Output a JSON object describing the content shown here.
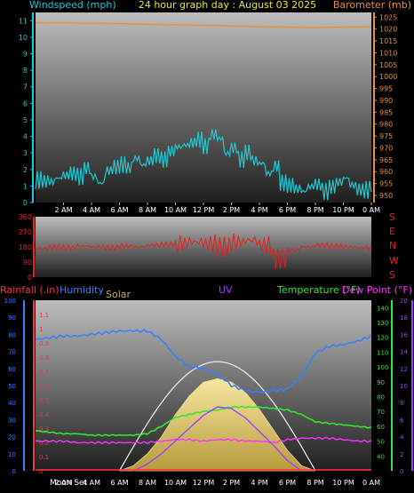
{
  "colors": {
    "wind": "#1ec8d4",
    "barometer": "#e8903a",
    "title": "#e8e830",
    "direction": "#ee1c1c",
    "rain": "#ff3030",
    "humidity": "#3a7fff",
    "solar": "#c8b050",
    "uv": "#a040ff",
    "temperature": "#30e830",
    "dewpoint": "#ff30ff"
  },
  "header": {
    "windspeed_label": "Windspeed (mph)",
    "title": "24 hour graph day : August 03 2025",
    "barometer_label": "Barometer (mb)"
  },
  "bottom_labels": {
    "rainfall": "Rainfall (.in)",
    "humidity": "Humidity",
    "solar": "Solar",
    "uv": "UV",
    "temperature": "Temperature (°F)",
    "dewpoint": "Dew Point (°F)",
    "moon_set": "Moon Set"
  },
  "compass": [
    "S",
    "E",
    "N",
    "W",
    "S"
  ],
  "time_ticks": [
    "2 AM",
    "4 AM",
    "6 AM",
    "8 AM",
    "10 AM",
    "12 PM",
    "2 PM",
    "4 PM",
    "6 PM",
    "8 PM",
    "10 PM",
    "0 AM"
  ],
  "chart_data": [
    {
      "type": "line",
      "title": "24 hour graph day : August 03 2025",
      "x_unit": "hours since midnight",
      "xlim": [
        0,
        24
      ],
      "series": [
        {
          "name": "Windspeed (mph)",
          "axis": "left",
          "ylim": [
            0,
            11.5
          ],
          "x": [
            0,
            0.5,
            1,
            1.5,
            2,
            2.5,
            3,
            3.5,
            4,
            4.5,
            5,
            5.5,
            6,
            6.5,
            7,
            7.5,
            8,
            8.5,
            9,
            9.5,
            10,
            10.5,
            11,
            11.5,
            12,
            12.5,
            13,
            13.5,
            14,
            14.5,
            15,
            15.5,
            16,
            16.5,
            17,
            17.5,
            18,
            18.5,
            19,
            19.5,
            20,
            20.5,
            21,
            21.5,
            22,
            22.5,
            23,
            23.5,
            24
          ],
          "y": [
            1.2,
            1,
            0.9,
            1.1,
            1.3,
            1.5,
            1.4,
            1.8,
            1.2,
            0.8,
            1.6,
            1.9,
            2.1,
            1.8,
            2.3,
            1.9,
            2.2,
            2.6,
            2.4,
            2.8,
            3,
            3.1,
            3.3,
            3.6,
            3.2,
            3.8,
            3.5,
            2.6,
            3,
            2.4,
            2.8,
            2.2,
            2,
            1.4,
            1.9,
            1,
            0.8,
            0.5,
            0.3,
            0.6,
            0.8,
            0.5,
            0.7,
            0.9,
            1.1,
            0.7,
            0.5,
            0.6,
            0.8
          ]
        },
        {
          "name": "Barometer (mb)",
          "axis": "right",
          "ylim": [
            947,
            1027
          ],
          "y_ticks": [
            950,
            955,
            960,
            965,
            970,
            975,
            980,
            985,
            990,
            995,
            1000,
            1005,
            1010,
            1015,
            1020,
            1025
          ],
          "x": [
            0,
            4,
            8,
            12,
            16,
            20,
            24
          ],
          "y": [
            1022.7,
            1022.5,
            1022,
            1021.6,
            1021,
            1020.6,
            1021
          ]
        }
      ],
      "y_ticks_left": [
        0,
        1,
        2,
        3,
        4,
        5,
        6,
        7,
        8,
        9,
        10,
        11
      ]
    },
    {
      "type": "line",
      "title": "",
      "x_unit": "hours since midnight",
      "xlim": [
        0,
        24
      ],
      "series": [
        {
          "name": "Wind direction (degrees)",
          "ylim": [
            0,
            360
          ],
          "y_ticks": [
            0,
            90,
            180,
            270,
            360
          ],
          "x": [
            0,
            1,
            2,
            3,
            4,
            5,
            6,
            7,
            8,
            9,
            10,
            11,
            12,
            13,
            14,
            15,
            16,
            17,
            18,
            19,
            20,
            21,
            22,
            23,
            24
          ],
          "y": [
            170,
            180,
            175,
            185,
            180,
            175,
            185,
            180,
            190,
            195,
            200,
            210,
            200,
            180,
            210,
            220,
            190,
            110,
            160,
            180,
            190,
            185,
            180,
            175,
            185
          ]
        }
      ]
    },
    {
      "type": "line",
      "title": "",
      "x_unit": "hours since midnight",
      "xlim": [
        0,
        24
      ],
      "axes": {
        "rainfall_ticks": [
          0,
          0.1,
          0.2,
          0.3,
          0.4,
          0.5,
          0.6,
          0.7,
          0.8,
          0.9,
          1,
          1.1
        ],
        "humidity_ticks": [
          0,
          10,
          20,
          30,
          40,
          50,
          60,
          70,
          80,
          90,
          100
        ],
        "temperature_ticks": [
          40,
          50,
          60,
          70,
          80,
          90,
          100,
          110,
          120,
          130,
          140
        ],
        "uv_ticks": [
          0,
          2,
          4,
          6,
          8,
          10,
          12,
          14,
          16,
          18,
          20
        ]
      },
      "series": [
        {
          "name": "Humidity",
          "ylim": [
            0,
            100
          ],
          "x": [
            0,
            1,
            2,
            3,
            4,
            5,
            6,
            7,
            8,
            9,
            10,
            11,
            12,
            13,
            14,
            15,
            16,
            17,
            18,
            19,
            20,
            21,
            22,
            23,
            24
          ],
          "y": [
            77,
            78,
            79,
            79,
            80,
            81,
            82,
            82,
            82,
            77,
            67,
            61,
            60,
            57,
            50,
            47,
            46,
            47,
            48,
            55,
            69,
            73,
            74,
            76,
            79
          ]
        },
        {
          "name": "Temperature (°F)",
          "ylim": [
            30,
            145
          ],
          "x": [
            0,
            1,
            2,
            3,
            4,
            5,
            6,
            7,
            8,
            9,
            10,
            11,
            12,
            13,
            14,
            15,
            16,
            17,
            18,
            19,
            20,
            21,
            22,
            23,
            24
          ],
          "y": [
            57,
            56,
            55,
            55,
            54,
            54,
            54,
            54,
            55,
            60,
            66,
            68,
            70,
            71,
            73,
            73,
            73,
            72,
            71,
            68,
            63,
            62,
            61,
            60,
            59
          ]
        },
        {
          "name": "Dew Point (°F)",
          "ylim": [
            30,
            145
          ],
          "x": [
            0,
            1,
            2,
            3,
            4,
            5,
            6,
            7,
            8,
            9,
            10,
            11,
            12,
            13,
            14,
            15,
            16,
            17,
            18,
            19,
            20,
            21,
            22,
            23,
            24
          ],
          "y": [
            50,
            50,
            50,
            49,
            49,
            49,
            49,
            49,
            49,
            50,
            51,
            51,
            50,
            51,
            51,
            50,
            50,
            49,
            51,
            52,
            52,
            52,
            51,
            50,
            50
          ]
        },
        {
          "name": "Solar",
          "ylim": [
            0,
            100
          ],
          "x": [
            6,
            7,
            8,
            9,
            10,
            11,
            12,
            13,
            14,
            15,
            16,
            17,
            18,
            19,
            20
          ],
          "y": [
            0,
            3,
            10,
            20,
            33,
            44,
            52,
            54,
            52,
            46,
            36,
            24,
            12,
            3,
            0
          ]
        },
        {
          "name": "UV",
          "ylim": [
            0,
            20
          ],
          "x": [
            7,
            8,
            9,
            10,
            11,
            12,
            13,
            14,
            15,
            16,
            17,
            18,
            19
          ],
          "y": [
            0,
            0.8,
            2,
            3.5,
            5,
            6.5,
            7.5,
            7.3,
            6.2,
            4.6,
            3,
            1.2,
            0
          ]
        }
      ]
    }
  ]
}
